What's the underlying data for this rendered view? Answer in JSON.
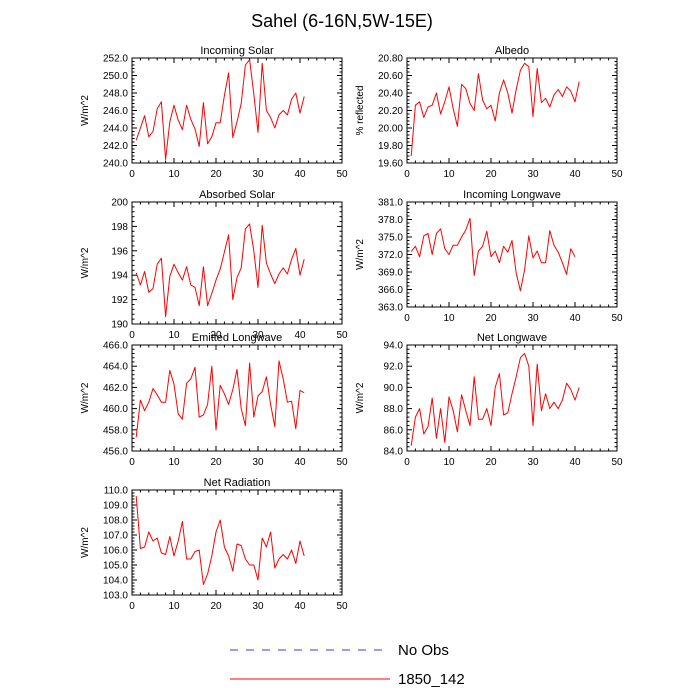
{
  "page_title": "Sahel (6-16N,5W-15E)",
  "legend": {
    "items": [
      {
        "label": "No Obs",
        "color": "#3b3bd6",
        "style": "dashed"
      },
      {
        "label": "1850_142",
        "color": "#ff0000",
        "style": "solid"
      }
    ]
  },
  "chart_data": [
    {
      "type": "line",
      "title": "Incoming Solar",
      "ylabel": "W/m^2",
      "xlim": [
        0,
        50
      ],
      "ylim": [
        240,
        252
      ],
      "xticks": [
        0,
        10,
        20,
        30,
        40,
        50
      ],
      "yticks": [
        240,
        242,
        244,
        246,
        248,
        250,
        252
      ],
      "ytick_labels": [
        "240.0",
        "242.0",
        "244.0",
        "246.0",
        "248.0",
        "250.0",
        "252.0"
      ],
      "series": [
        {
          "name": "1850_142",
          "color": "#ff0000",
          "x": [
            1,
            2,
            3,
            4,
            5,
            6,
            7,
            8,
            9,
            10,
            11,
            12,
            13,
            14,
            15,
            16,
            17,
            18,
            19,
            20,
            21,
            22,
            23,
            24,
            25,
            26,
            27,
            28,
            29,
            30,
            31,
            32,
            33,
            34,
            35,
            36,
            37,
            38,
            39,
            40,
            41
          ],
          "values": [
            242.6,
            244.0,
            245.4,
            243.0,
            243.6,
            246.2,
            247.0,
            240.4,
            244.7,
            246.6,
            244.9,
            243.8,
            246.6,
            245.0,
            243.9,
            241.9,
            246.9,
            242.2,
            243.0,
            244.6,
            244.6,
            247.7,
            250.3,
            242.9,
            244.7,
            246.8,
            251.2,
            251.8,
            247.9,
            243.5,
            251.4,
            246.0,
            245.2,
            244.0,
            245.5,
            246.0,
            245.5,
            247.3,
            248.0,
            245.7,
            247.6
          ]
        }
      ]
    },
    {
      "type": "line",
      "title": "Albedo",
      "ylabel": "% reflected",
      "xlim": [
        0,
        50
      ],
      "ylim": [
        19.6,
        20.8
      ],
      "xticks": [
        0,
        10,
        20,
        30,
        40,
        50
      ],
      "yticks": [
        19.6,
        19.8,
        20.0,
        20.2,
        20.4,
        20.6,
        20.8
      ],
      "ytick_labels": [
        "19.60",
        "19.80",
        "20.00",
        "20.20",
        "20.40",
        "20.60",
        "20.80"
      ],
      "series": [
        {
          "name": "1850_142",
          "color": "#ff0000",
          "x": [
            1,
            2,
            3,
            4,
            5,
            6,
            7,
            8,
            9,
            10,
            11,
            12,
            13,
            14,
            15,
            16,
            17,
            18,
            19,
            20,
            21,
            22,
            23,
            24,
            25,
            26,
            27,
            28,
            29,
            30,
            31,
            32,
            33,
            34,
            35,
            36,
            37,
            38,
            39,
            40,
            41
          ],
          "values": [
            19.68,
            20.26,
            20.3,
            20.12,
            20.24,
            20.26,
            20.4,
            20.16,
            20.3,
            20.47,
            20.22,
            20.02,
            20.5,
            20.45,
            20.28,
            20.2,
            20.62,
            20.32,
            20.22,
            20.26,
            20.08,
            20.4,
            20.55,
            20.4,
            20.17,
            20.44,
            20.66,
            20.74,
            20.7,
            20.13,
            20.68,
            20.29,
            20.34,
            20.24,
            20.38,
            20.44,
            20.36,
            20.47,
            20.42,
            20.3,
            20.53
          ]
        }
      ]
    },
    {
      "type": "line",
      "title": "Absorbed Solar",
      "ylabel": "W/m^2",
      "xlim": [
        0,
        50
      ],
      "ylim": [
        190,
        200
      ],
      "xticks": [
        0,
        10,
        20,
        30,
        40,
        50
      ],
      "yticks": [
        190,
        192,
        194,
        196,
        198,
        200
      ],
      "ytick_labels": [
        "190",
        "192",
        "194",
        "196",
        "198",
        "200"
      ],
      "series": [
        {
          "name": "1850_142",
          "color": "#ff0000",
          "x": [
            1,
            2,
            3,
            4,
            5,
            6,
            7,
            8,
            9,
            10,
            11,
            12,
            13,
            14,
            15,
            16,
            17,
            18,
            19,
            20,
            21,
            22,
            23,
            24,
            25,
            26,
            27,
            28,
            29,
            30,
            31,
            32,
            33,
            34,
            35,
            36,
            37,
            38,
            39,
            40,
            41
          ],
          "values": [
            194.2,
            193.2,
            194.3,
            192.6,
            192.9,
            194.9,
            195.4,
            190.6,
            193.9,
            194.9,
            194.2,
            193.6,
            194.7,
            193.2,
            193.0,
            191.5,
            194.7,
            191.5,
            192.5,
            193.6,
            194.5,
            195.9,
            197.3,
            192.0,
            193.8,
            194.6,
            197.8,
            198.2,
            196.0,
            193.0,
            198.1,
            195.0,
            194.1,
            193.3,
            194.1,
            194.6,
            194.1,
            195.3,
            196.2,
            194.0,
            195.3
          ]
        }
      ]
    },
    {
      "type": "line",
      "title": "Incoming Longwave",
      "ylabel": "W/m^2",
      "xlim": [
        0,
        50
      ],
      "ylim": [
        363,
        381
      ],
      "xticks": [
        0,
        10,
        20,
        30,
        40,
        50
      ],
      "yticks": [
        363,
        366,
        369,
        372,
        375,
        378,
        381
      ],
      "ytick_labels": [
        "363.0",
        "366.0",
        "369.0",
        "372.0",
        "375.0",
        "378.0",
        "381.0"
      ],
      "series": [
        {
          "name": "1850_142",
          "color": "#ff0000",
          "x": [
            1,
            2,
            3,
            4,
            5,
            6,
            7,
            8,
            9,
            10,
            11,
            12,
            13,
            14,
            15,
            16,
            17,
            18,
            19,
            20,
            21,
            22,
            23,
            24,
            25,
            26,
            27,
            28,
            29,
            30,
            31,
            32,
            33,
            34,
            35,
            36,
            37,
            38,
            39,
            40,
            41
          ],
          "values": [
            372.5,
            373.4,
            371.6,
            375.2,
            375.6,
            372.0,
            375.6,
            376.4,
            373.0,
            372.0,
            373.6,
            373.6,
            375.0,
            376.2,
            378.2,
            368.4,
            372.6,
            373.4,
            376.0,
            371.6,
            372.6,
            370.6,
            373.4,
            372.4,
            374.4,
            368.8,
            365.8,
            369.4,
            375.2,
            371.4,
            372.6,
            370.6,
            370.6,
            376.1,
            373.6,
            372.4,
            370.6,
            368.6,
            373.0,
            371.6,
            null
          ]
        }
      ]
    },
    {
      "type": "line",
      "title": "Emitted Longwave",
      "ylabel": "W/m^2",
      "xlim": [
        0,
        50
      ],
      "ylim": [
        456,
        466
      ],
      "xticks": [
        0,
        10,
        20,
        30,
        40,
        50
      ],
      "yticks": [
        456,
        458,
        460,
        462,
        464,
        466
      ],
      "ytick_labels": [
        "456.0",
        "458.0",
        "460.0",
        "462.0",
        "464.0",
        "466.0"
      ],
      "series": [
        {
          "name": "1850_142",
          "color": "#ff0000",
          "x": [
            1,
            2,
            3,
            4,
            5,
            6,
            7,
            8,
            9,
            10,
            11,
            12,
            13,
            14,
            15,
            16,
            17,
            18,
            19,
            20,
            21,
            22,
            23,
            24,
            25,
            26,
            27,
            28,
            29,
            30,
            31,
            32,
            33,
            34,
            35,
            36,
            37,
            38,
            39,
            40,
            41
          ],
          "values": [
            457.3,
            460.8,
            459.8,
            460.6,
            461.9,
            461.3,
            460.6,
            460.6,
            463.6,
            462.3,
            459.5,
            459.0,
            462.4,
            462.8,
            463.9,
            459.2,
            459.4,
            460.4,
            464.0,
            458.0,
            462.2,
            461.4,
            460.4,
            461.8,
            463.7,
            460.0,
            458.4,
            464.3,
            459.2,
            461.2,
            461.6,
            463.0,
            460.4,
            458.3,
            464.5,
            462.8,
            460.6,
            460.7,
            458.1,
            461.7,
            461.5
          ]
        }
      ]
    },
    {
      "type": "line",
      "title": "Net Longwave",
      "ylabel": "W/m^2",
      "xlim": [
        0,
        50
      ],
      "ylim": [
        84,
        94
      ],
      "xticks": [
        0,
        10,
        20,
        30,
        40,
        50
      ],
      "yticks": [
        84,
        86,
        88,
        90,
        92,
        94
      ],
      "ytick_labels": [
        "84.0",
        "86.0",
        "88.0",
        "90.0",
        "92.0",
        "94.0"
      ],
      "series": [
        {
          "name": "1850_142",
          "color": "#ff0000",
          "x": [
            1,
            2,
            3,
            4,
            5,
            6,
            7,
            8,
            9,
            10,
            11,
            12,
            13,
            14,
            15,
            16,
            17,
            18,
            19,
            20,
            21,
            22,
            23,
            24,
            25,
            26,
            27,
            28,
            29,
            30,
            31,
            32,
            33,
            34,
            35,
            36,
            37,
            38,
            39,
            40,
            41
          ],
          "values": [
            84.5,
            87.2,
            88.0,
            85.6,
            86.3,
            89.0,
            85.2,
            88.0,
            84.8,
            89.1,
            87.8,
            85.8,
            89.3,
            87.8,
            86.4,
            91.0,
            87.0,
            87.0,
            88.0,
            86.4,
            90.0,
            91.3,
            87.4,
            87.6,
            89.4,
            91.0,
            92.8,
            93.2,
            92.0,
            86.4,
            92.2,
            87.8,
            89.4,
            88.0,
            88.6,
            88.0,
            88.8,
            90.4,
            89.8,
            88.8,
            90.0
          ]
        }
      ]
    },
    {
      "type": "line",
      "title": "Net Radiation",
      "ylabel": "W/m^2",
      "xlim": [
        0,
        50
      ],
      "ylim": [
        103,
        110
      ],
      "xticks": [
        0,
        10,
        20,
        30,
        40,
        50
      ],
      "yticks": [
        103,
        104,
        105,
        106,
        107,
        108,
        109,
        110
      ],
      "ytick_labels": [
        "103.0",
        "104.0",
        "105.0",
        "106.0",
        "107.0",
        "108.0",
        "109.0",
        "110.0"
      ],
      "series": [
        {
          "name": "1850_142",
          "color": "#ff0000",
          "x": [
            1,
            2,
            3,
            4,
            5,
            6,
            7,
            8,
            9,
            10,
            11,
            12,
            13,
            14,
            15,
            16,
            17,
            18,
            19,
            20,
            21,
            22,
            23,
            24,
            25,
            26,
            27,
            28,
            29,
            30,
            31,
            32,
            33,
            34,
            35,
            36,
            37,
            38,
            39,
            40,
            41
          ],
          "values": [
            109.6,
            106.1,
            106.2,
            107.2,
            106.6,
            106.8,
            105.8,
            105.7,
            106.9,
            105.6,
            106.6,
            107.9,
            105.4,
            105.4,
            105.9,
            106.0,
            103.7,
            104.4,
            105.6,
            107.2,
            108.0,
            106.2,
            105.6,
            104.6,
            106.4,
            106.3,
            105.4,
            105.0,
            105.0,
            104.0,
            106.8,
            106.2,
            107.2,
            104.8,
            105.4,
            105.7,
            105.4,
            106.0,
            105.1,
            106.6,
            105.6
          ]
        }
      ]
    }
  ]
}
